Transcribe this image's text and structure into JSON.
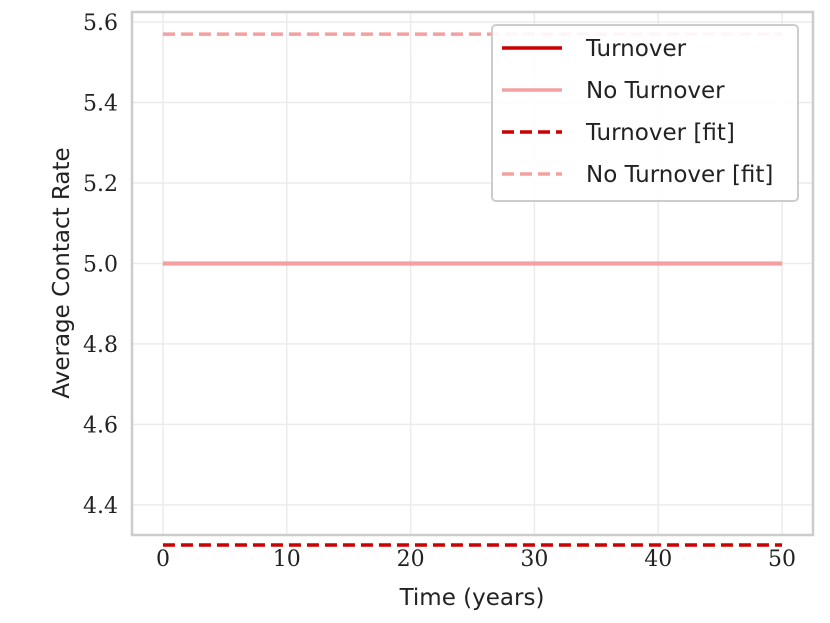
{
  "chart_data": {
    "type": "line",
    "xlabel": "Time (years)",
    "ylabel": "Average Contact Rate",
    "xlim": [
      -2.5,
      52.5
    ],
    "ylim": [
      4.325,
      5.625
    ],
    "x_ticks": [
      "0",
      "10",
      "20",
      "30",
      "40",
      "50"
    ],
    "y_ticks": [
      "4.4",
      "4.6",
      "4.8",
      "5.0",
      "5.2",
      "5.4",
      "5.6"
    ],
    "grid": true,
    "legend_position": "top-right",
    "series": [
      {
        "name": "Turnover",
        "color": "#cc0000",
        "style": "solid",
        "x": [
          0,
          50
        ],
        "y": [
          5.0,
          5.0
        ]
      },
      {
        "name": "No Turnover",
        "color": "#f4a0a0",
        "style": "solid",
        "x": [
          0,
          50
        ],
        "y": [
          5.0,
          5.0
        ]
      },
      {
        "name": "Turnover [fit]",
        "color": "#cc0000",
        "style": "dashed",
        "x": [
          0,
          50
        ],
        "y": [
          4.3,
          4.3
        ]
      },
      {
        "name": "No Turnover [fit]",
        "color": "#f4a0a0",
        "style": "dashed",
        "x": [
          0,
          50
        ],
        "y": [
          5.57,
          5.57
        ]
      }
    ]
  }
}
